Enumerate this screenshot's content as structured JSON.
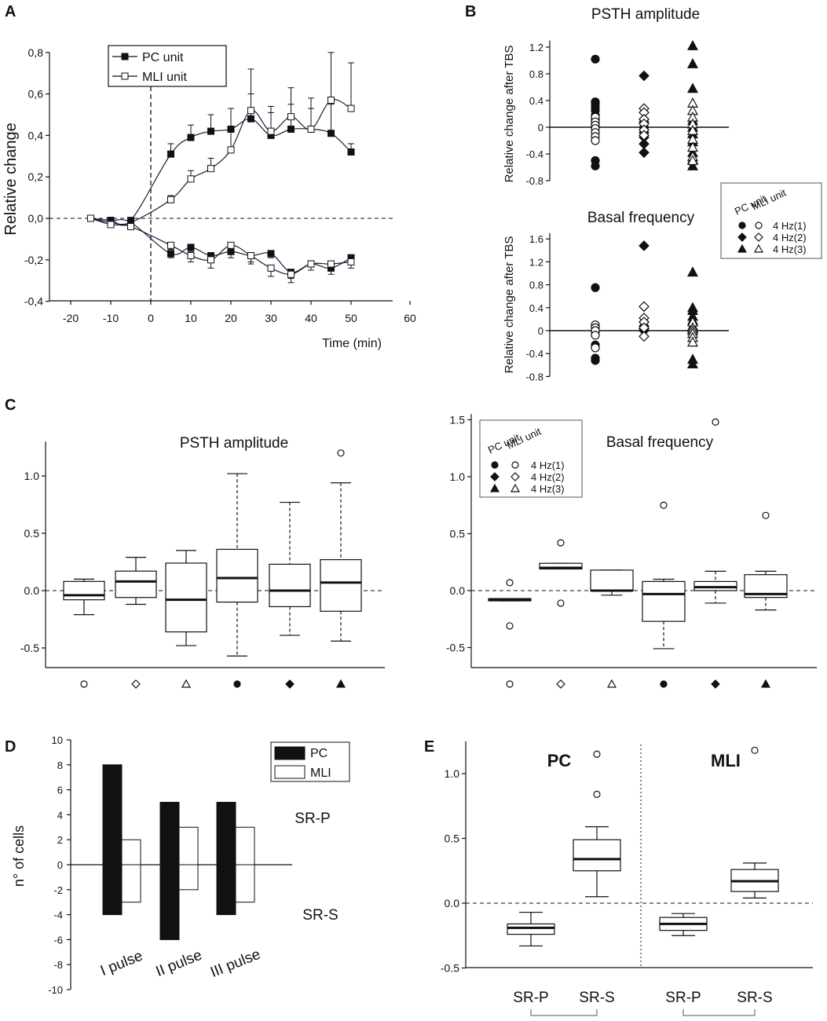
{
  "panel_labels": {
    "a": "A",
    "b": "B",
    "c": "C",
    "d": "D",
    "e": "E"
  },
  "colors": {
    "ink": "#111111",
    "axis": "#1a1a3a",
    "frame": "#000000"
  },
  "chart_data": [
    {
      "id": "A",
      "type": "line",
      "title": "",
      "xlabel": "Time (min)",
      "ylabel": "Relative change",
      "xlim": [
        -25,
        60
      ],
      "ylim": [
        -0.4,
        0.8
      ],
      "xticks": [
        "-20",
        "-10",
        "0",
        "10",
        "20",
        "30",
        "40",
        "50",
        "60"
      ],
      "yticks": [
        "-0,4",
        "-0,2",
        "0,0",
        "0,2",
        "0,4",
        "0,6",
        "0,8"
      ],
      "legend": [
        "PC unit",
        "MLI unit"
      ],
      "series": [
        {
          "name": "PC unit (increase)",
          "marker": "filled-square",
          "x": [
            -15,
            -10,
            -5,
            5,
            10,
            15,
            20,
            25,
            30,
            35,
            40,
            45,
            50
          ],
          "y": [
            0.0,
            -0.01,
            -0.01,
            0.31,
            0.39,
            0.42,
            0.43,
            0.48,
            0.4,
            0.43,
            0.43,
            0.41,
            0.32
          ],
          "err": [
            0.0,
            0.01,
            0.01,
            0.05,
            0.06,
            0.08,
            0.1,
            0.12,
            0.11,
            0.12,
            0.15,
            0.14,
            0.04
          ]
        },
        {
          "name": "MLI unit (increase)",
          "marker": "open-square",
          "x": [
            -15,
            -10,
            -5,
            5,
            10,
            15,
            20,
            25,
            30,
            35,
            40,
            45,
            50
          ],
          "y": [
            0.0,
            -0.02,
            -0.02,
            0.09,
            0.19,
            0.24,
            0.33,
            0.52,
            0.42,
            0.49,
            0.43,
            0.57,
            0.53
          ],
          "err": [
            0.0,
            0.01,
            0.01,
            0.02,
            0.04,
            0.05,
            0.1,
            0.2,
            0.12,
            0.14,
            0.1,
            0.23,
            0.22
          ]
        },
        {
          "name": "PC unit (decrease)",
          "marker": "filled-square",
          "x": [
            -15,
            -10,
            -5,
            5,
            10,
            15,
            20,
            25,
            30,
            35,
            40,
            45,
            50
          ],
          "y": [
            0.0,
            -0.01,
            -0.02,
            -0.17,
            -0.14,
            -0.18,
            -0.16,
            -0.18,
            -0.17,
            -0.26,
            -0.22,
            -0.24,
            -0.19
          ],
          "err": [
            0.0,
            0.01,
            0.01,
            0.02,
            0.02,
            0.03,
            0.03,
            0.03,
            0.02,
            0.03,
            0.03,
            0.03,
            0.03
          ]
        },
        {
          "name": "MLI unit (decrease)",
          "marker": "open-square",
          "x": [
            -15,
            -10,
            -5,
            5,
            10,
            15,
            20,
            25,
            30,
            35,
            40,
            45,
            50
          ],
          "y": [
            0.0,
            -0.03,
            -0.04,
            -0.13,
            -0.18,
            -0.2,
            -0.13,
            -0.18,
            -0.24,
            -0.27,
            -0.22,
            -0.22,
            -0.21
          ],
          "err": [
            0.0,
            0.01,
            0.01,
            0.02,
            0.03,
            0.04,
            0.03,
            0.04,
            0.04,
            0.04,
            0.03,
            0.03,
            0.03
          ]
        }
      ]
    },
    {
      "id": "B-top",
      "type": "scatter",
      "title": "PSTH  amplitude",
      "ylabel": "Relative change after TBS",
      "ylim": [
        -0.8,
        1.3
      ],
      "yticks": [
        "-0.8",
        "-0.4",
        "0",
        "0.4",
        "0.8",
        "1.2"
      ],
      "groups": [
        {
          "name": "4 Hz(1)",
          "pc": [
            1.02,
            0.38,
            0.35,
            0.3,
            0.25,
            0.18,
            0.12,
            0.05,
            0.0,
            -0.5,
            -0.58
          ],
          "mli": [
            0.15,
            0.08,
            0.03,
            -0.02,
            -0.08,
            -0.14,
            -0.2
          ]
        },
        {
          "name": "4 Hz(2)",
          "pc": [
            0.77,
            0.08,
            0.0,
            -0.08,
            -0.15,
            -0.25,
            -0.38
          ],
          "mli": [
            0.28,
            0.22,
            0.12,
            0.05,
            -0.04,
            -0.12
          ]
        },
        {
          "name": "4 Hz(3)",
          "pc": [
            1.22,
            0.95,
            0.58,
            0.1,
            0.0,
            -0.1,
            -0.22,
            -0.38,
            -0.48,
            -0.58
          ],
          "mli": [
            0.36,
            0.25,
            0.15,
            0.05,
            -0.05,
            -0.18,
            -0.3,
            -0.44,
            -0.5
          ]
        }
      ]
    },
    {
      "id": "B-bottom",
      "type": "scatter",
      "title": "Basal frequency",
      "ylabel": "Relative change after TBS",
      "ylim": [
        -0.8,
        1.7
      ],
      "yticks": [
        "-0.8",
        "-0.4",
        "0",
        "0.4",
        "0.8",
        "1.2",
        "1.6"
      ],
      "legend": {
        "header_pc": "PC unit",
        "header_mli": "MLI unit",
        "entries": [
          "4 Hz(1)",
          "4 Hz(2)",
          "4 Hz(3)"
        ]
      },
      "groups": [
        {
          "name": "4 Hz(1)",
          "pc": [
            0.75,
            -0.02,
            -0.25,
            -0.48,
            -0.52
          ],
          "mli": [
            0.1,
            0.05,
            0.0,
            -0.08,
            -0.3
          ]
        },
        {
          "name": "4 Hz(2)",
          "pc": [
            1.48,
            0.15,
            0.08,
            0.03,
            0.0
          ],
          "mli": [
            0.42,
            0.22,
            0.15,
            0.05,
            -0.1
          ]
        },
        {
          "name": "4 Hz(3)",
          "pc": [
            1.02,
            0.4,
            0.35,
            0.25,
            0.18,
            0.08,
            0.02,
            -0.5,
            -0.58
          ],
          "mli": [
            0.15,
            0.05,
            0.0,
            -0.05,
            -0.12,
            -0.2
          ]
        }
      ]
    },
    {
      "id": "C-left",
      "type": "boxplot",
      "title": "PSTH amplitude",
      "ylim": [
        -0.6,
        1.3
      ],
      "yticks": [
        "-0.5",
        "0.0",
        "0.5",
        "1.0"
      ],
      "categories": [
        "○",
        "◇",
        "△",
        "●",
        "◆",
        "▲"
      ],
      "boxes": [
        {
          "min": -0.21,
          "q1": -0.08,
          "median": -0.04,
          "q3": 0.08,
          "max": 0.1,
          "outliers": [],
          "dashed": false
        },
        {
          "min": -0.12,
          "q1": -0.06,
          "median": 0.08,
          "q3": 0.17,
          "max": 0.29,
          "outliers": [],
          "dashed": false
        },
        {
          "min": -0.48,
          "q1": -0.36,
          "median": -0.08,
          "q3": 0.24,
          "max": 0.35,
          "outliers": [],
          "dashed": false
        },
        {
          "min": -0.57,
          "q1": -0.1,
          "median": 0.11,
          "q3": 0.36,
          "max": 1.02,
          "outliers": [],
          "dashed": true
        },
        {
          "min": -0.39,
          "q1": -0.14,
          "median": 0.0,
          "q3": 0.23,
          "max": 0.77,
          "outliers": [],
          "dashed": true
        },
        {
          "min": -0.44,
          "q1": -0.18,
          "median": 0.07,
          "q3": 0.27,
          "max": 0.94,
          "outliers": [
            1.2
          ],
          "dashed": true
        }
      ]
    },
    {
      "id": "C-right",
      "type": "boxplot",
      "title": "Basal frequency",
      "ylim": [
        -0.6,
        1.55
      ],
      "yticks": [
        "-0.5",
        "0.0",
        "0.5",
        "1.0",
        "1.5"
      ],
      "categories": [
        "○",
        "◇",
        "△",
        "●",
        "◆",
        "▲"
      ],
      "legend": {
        "header_pc": "PC unit",
        "header_mli": "MLI unit",
        "entries": [
          "4 Hz(1)",
          "4 Hz(2)",
          "4 Hz(3)"
        ]
      },
      "boxes": [
        {
          "min": -0.09,
          "q1": -0.09,
          "median": -0.08,
          "q3": -0.07,
          "max": -0.07,
          "outliers": [
            0.07,
            -0.31
          ],
          "dashed": false
        },
        {
          "min": 0.19,
          "q1": 0.19,
          "median": 0.2,
          "q3": 0.24,
          "max": 0.24,
          "outliers": [
            0.42,
            -0.11
          ],
          "dashed": false
        },
        {
          "min": -0.04,
          "q1": 0.0,
          "median": 0.0,
          "q3": 0.18,
          "max": 0.18,
          "outliers": [],
          "dashed": false
        },
        {
          "min": -0.51,
          "q1": -0.27,
          "median": -0.03,
          "q3": 0.08,
          "max": 0.1,
          "outliers": [
            0.75
          ],
          "dashed": true
        },
        {
          "min": -0.11,
          "q1": 0.0,
          "median": 0.03,
          "q3": 0.08,
          "max": 0.17,
          "outliers": [
            1.48
          ],
          "dashed": true
        },
        {
          "min": -0.17,
          "q1": -0.06,
          "median": -0.03,
          "q3": 0.14,
          "max": 0.17,
          "outliers": [
            0.66
          ],
          "dashed": true
        }
      ]
    },
    {
      "id": "D",
      "type": "bar",
      "ylabel": "n° of cells",
      "ylim": [
        -10,
        10
      ],
      "yticks": [
        "-10",
        "-8",
        "-6",
        "-4",
        "-2",
        "0",
        "2",
        "4",
        "6",
        "8",
        "10"
      ],
      "categories": [
        "I pulse",
        "II pulse",
        "III pulse"
      ],
      "series": [
        {
          "name": "PC",
          "positive": [
            8,
            5,
            5
          ],
          "negative": [
            -4,
            -6,
            -4
          ]
        },
        {
          "name": "MLI",
          "positive": [
            2,
            3,
            3
          ],
          "negative": [
            -3,
            -2,
            -3
          ]
        }
      ],
      "annotations": [
        "SR-P",
        "SR-S"
      ]
    },
    {
      "id": "E",
      "type": "boxplot",
      "ylim": [
        -0.55,
        1.25
      ],
      "yticks": [
        "-0.5",
        "0.0",
        "0.5",
        "1.0"
      ],
      "group_labels": [
        "PC",
        "MLI"
      ],
      "categories": [
        "SR-P",
        "SR-S",
        "SR-P",
        "SR-S"
      ],
      "boxes": [
        {
          "min": -0.33,
          "q1": -0.24,
          "median": -0.19,
          "q3": -0.16,
          "max": -0.07,
          "outliers": []
        },
        {
          "min": 0.05,
          "q1": 0.25,
          "median": 0.34,
          "q3": 0.49,
          "max": 0.59,
          "outliers": [
            0.84,
            1.15
          ]
        },
        {
          "min": -0.25,
          "q1": -0.21,
          "median": -0.16,
          "q3": -0.11,
          "max": -0.08,
          "outliers": []
        },
        {
          "min": 0.04,
          "q1": 0.09,
          "median": 0.17,
          "q3": 0.26,
          "max": 0.31,
          "outliers": [
            1.18
          ]
        }
      ]
    }
  ]
}
